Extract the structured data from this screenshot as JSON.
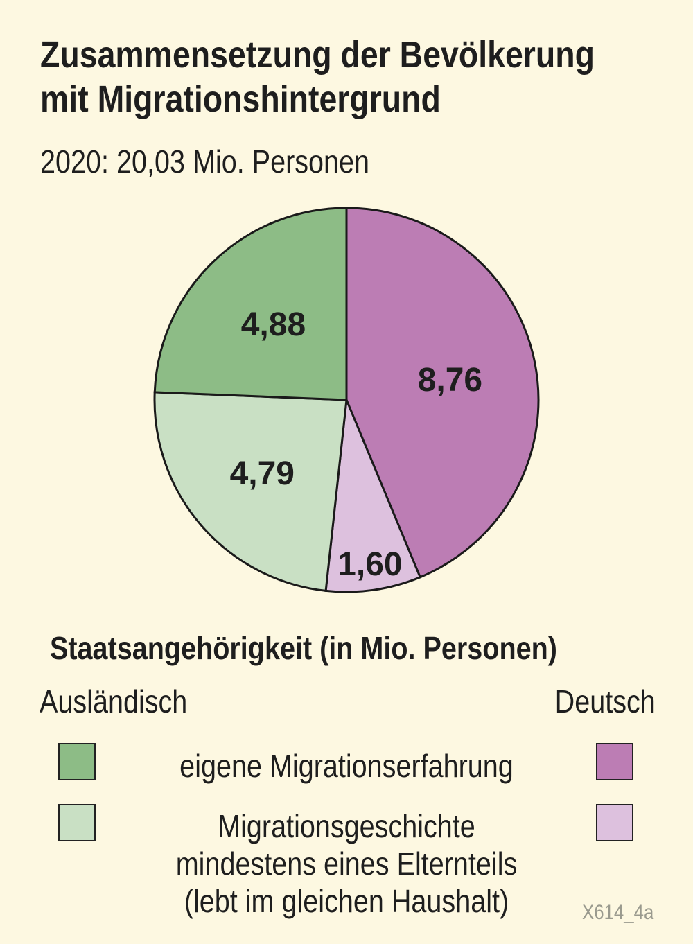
{
  "title_line1": "Zusammensetzung der Bevölkerung",
  "title_line2": "mit Migrationshintergrund",
  "subtitle": "2020: 20,03 Mio. Personen",
  "chart_data": {
    "type": "pie",
    "title": "Zusammensetzung der Bevölkerung mit Migrationshintergrund",
    "subtitle": "2020: 20,03 Mio. Personen",
    "unit": "Mio. Personen",
    "slices": [
      {
        "label": "8,76",
        "value": 8.76,
        "staatsangehoerigkeit": "Deutsch",
        "kategorie": "eigene Migrationserfahrung",
        "color": "#bc7db4"
      },
      {
        "label": "1,60",
        "value": 1.6,
        "staatsangehoerigkeit": "Deutsch",
        "kategorie": "Migrationsgeschichte mindestens eines Elternteils (lebt im gleichen Haushalt)",
        "color": "#ddc1de"
      },
      {
        "label": "4,79",
        "value": 4.79,
        "staatsangehoerigkeit": "Ausländisch",
        "kategorie": "Migrationsgeschichte mindestens eines Elternteils (lebt im gleichen Haushalt)",
        "color": "#c9e0c4"
      },
      {
        "label": "4,88",
        "value": 4.88,
        "staatsangehoerigkeit": "Ausländisch",
        "kategorie": "eigene Migrationserfahrung",
        "color": "#8dbc86"
      }
    ]
  },
  "legend": {
    "title": "Staatsangehörigkeit (in Mio. Personen)",
    "col_left": "Ausländisch",
    "col_right": "Deutsch",
    "row1": "eigene Migrationserfahrung",
    "row2_line1": "Migrationsgeschichte",
    "row2_line2": "mindestens eines Elternteils",
    "row2_line3": "(lebt im gleichen Haushalt)",
    "colors": {
      "auslaendisch_eigene": "#8dbc86",
      "auslaendisch_eltern": "#c9e0c4",
      "deutsch_eigene": "#bc7db4",
      "deutsch_eltern": "#ddc1de"
    }
  },
  "watermark": "X614_4a"
}
